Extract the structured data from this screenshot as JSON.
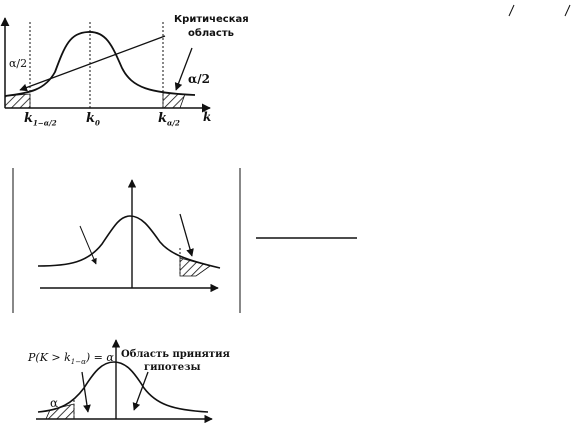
{
  "diagram1": {
    "critical_region_label_line1": "Критическая",
    "critical_region_label_line2": "область",
    "alpha_half_left": "α/2",
    "alpha_half_right": "α/2",
    "tick_left": "k",
    "tick_left_sub": "1−α/2",
    "tick_center": "k",
    "tick_center_sub": "0",
    "tick_right": "k",
    "tick_right_sub": "α/2",
    "axis_label": "k"
  },
  "diagram3": {
    "probability_label": "P(K > k",
    "probability_sub": "1−α",
    "probability_tail": ") = α",
    "alpha_label": "α",
    "acceptance_label_line1": "Область принятия",
    "acceptance_label_line2": "гипотезы"
  }
}
